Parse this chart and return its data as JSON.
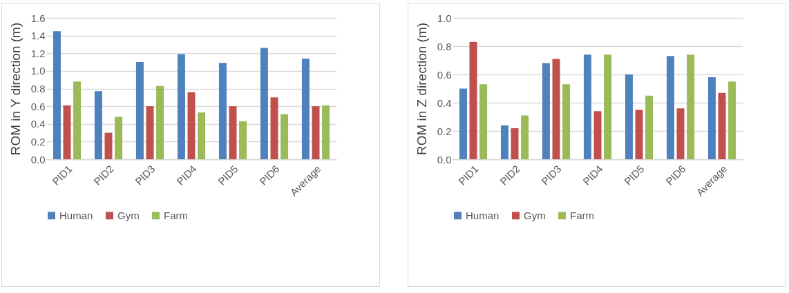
{
  "chart_data": [
    {
      "type": "bar",
      "ylabel": "ROM in Y direction (m)",
      "categories": [
        "PID1",
        "PID2",
        "PID3",
        "PID4",
        "PID5",
        "PID6",
        "Average"
      ],
      "series": [
        {
          "name": "Human",
          "color": "#4f81bd",
          "values": [
            1.45,
            0.77,
            1.1,
            1.19,
            1.09,
            1.26,
            1.14
          ]
        },
        {
          "name": "Gym",
          "color": "#c0504d",
          "values": [
            0.61,
            0.3,
            0.6,
            0.76,
            0.6,
            0.7,
            0.6
          ]
        },
        {
          "name": "Farm",
          "color": "#9bbb59",
          "values": [
            0.88,
            0.48,
            0.83,
            0.53,
            0.43,
            0.51,
            0.61
          ]
        }
      ],
      "ylim": [
        0,
        1.6
      ],
      "yticks": [
        {
          "value": 0,
          "label": "0.0"
        },
        {
          "value": 0.2,
          "label": "0.2"
        },
        {
          "value": 0.4,
          "label": "0.4"
        },
        {
          "value": 0.6,
          "label": "0.6"
        },
        {
          "value": 0.8,
          "label": "0.8"
        },
        {
          "value": 1,
          "label": "1.0"
        },
        {
          "value": 1.2,
          "label": "1.2"
        },
        {
          "value": 1.4,
          "label": "1.4"
        },
        {
          "value": 1.6,
          "label": "1.6"
        }
      ],
      "grid": "y",
      "legend": "bottom"
    },
    {
      "type": "bar",
      "ylabel": "ROM in Z direction (m)",
      "categories": [
        "PID1",
        "PID2",
        "PID3",
        "PID4",
        "PID5",
        "PID6",
        "Average"
      ],
      "series": [
        {
          "name": "Human",
          "color": "#4f81bd",
          "values": [
            0.5,
            0.24,
            0.68,
            0.74,
            0.6,
            0.73,
            0.58
          ]
        },
        {
          "name": "Gym",
          "color": "#c0504d",
          "values": [
            0.83,
            0.22,
            0.71,
            0.34,
            0.35,
            0.36,
            0.47
          ]
        },
        {
          "name": "Farm",
          "color": "#9bbb59",
          "values": [
            0.53,
            0.31,
            0.53,
            0.74,
            0.45,
            0.74,
            0.55
          ]
        }
      ],
      "ylim": [
        0,
        1
      ],
      "yticks": [
        {
          "value": 0,
          "label": "0.0"
        },
        {
          "value": 0.2,
          "label": "0.2"
        },
        {
          "value": 0.4,
          "label": "0.4"
        },
        {
          "value": 0.6,
          "label": "0.6"
        },
        {
          "value": 0.8,
          "label": "0.8"
        },
        {
          "value": 1,
          "label": "1.0"
        }
      ],
      "grid": "y",
      "legend": "bottom"
    }
  ]
}
